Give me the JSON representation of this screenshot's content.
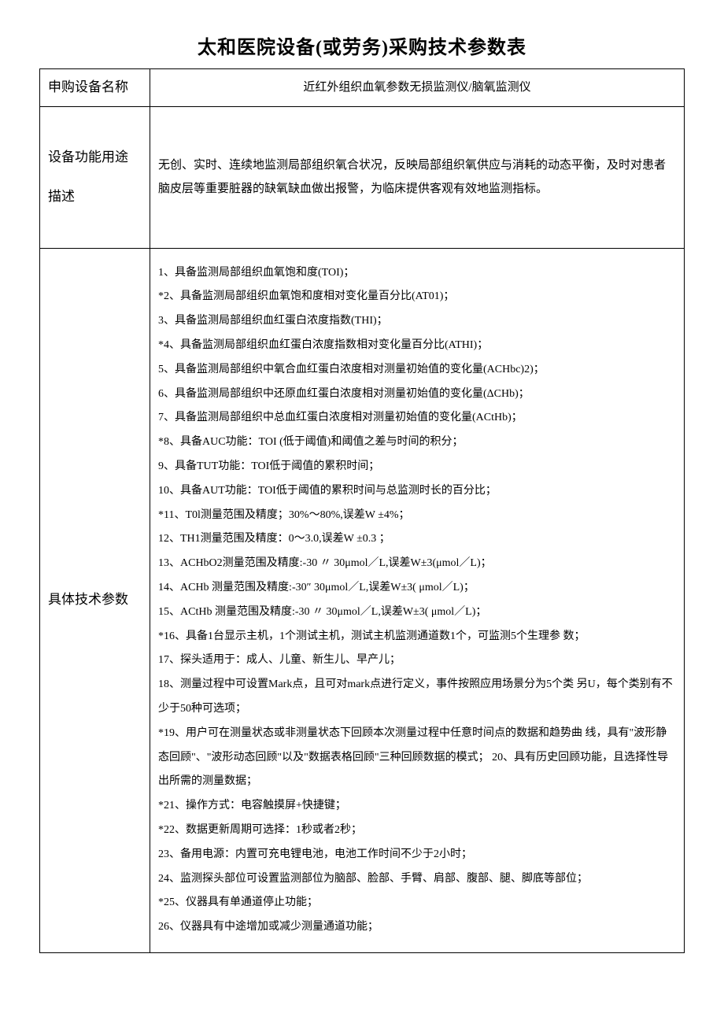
{
  "title": "太和医院设备(或劳务)采购技术参数表",
  "rows": {
    "equipment_name": {
      "label": "申购设备名称",
      "value": "近红外组织血氧参数无损监测仪/脑氧监测仪"
    },
    "function_desc": {
      "label": "设备功能用途描述",
      "value": "无创、实时、连续地监测局部组织氧合状况，反映局部组织氧供应与消耗的动态平衡，及时对患者脑皮层等重要脏器的缺氧缺血做出报警，为临床提供客观有效地监测指标。"
    },
    "tech_params": {
      "label": "具体技术参数",
      "items": [
        "1、具备监测局部组织血氧饱和度(TOI)；",
        "*2、具备监测局部组织血氧饱和度相对变化量百分比(AT01)；",
        "3、具备监测局部组织血红蛋白浓度指数(THI)；",
        "*4、具备监测局部组织血红蛋白浓度指数相对变化量百分比(ATHI)；",
        "5、具备监测局部组织中氧合血红蛋白浓度相对测量初始值的变化量(ACHbc)2)；",
        "6、具备监测局部组织中还原血红蛋白浓度相对测量初始值的变化量(ΔCHb)；",
        "7、具备监测局部组织中总血红蛋白浓度相对测量初始值的变化量(ACtHb)；",
        "*8、具备AUC功能：TOI (低于阈值)和阈值之差与时间的积分；",
        "9、具备TUT功能：TOI低于阈值的累积时间；",
        "10、具备AUT功能：TOI低于阈值的累积时间与总监测时长的百分比；",
        "*11、T0l测量范围及精度；30%～80%,误差W ±4%；",
        "12、TH1测量范围及精度：0～3.0,误差W ±0.3 ；",
        "13、ACHbO2测量范围及精度:-30 〃 30μmol／L,误差W±3(μmol／L)；",
        "14、ACHb 测量范围及精度:-30″ 30μmol／L,误差W±3( μmol／L)；",
        "15、ACtHb 测量范围及精度:-30 〃 30μmol／L,误差W±3( μmol／L)；",
        "*16、具备1台显示主机，1个测试主机，测试主机监测通道数1个，可监测5个生理参 数；",
        "17、探头适用于：成人、儿童、新生儿、早产儿；",
        "18、测量过程中可设置Mark点，且可对mark点进行定义，事件按照应用场景分为5个类 另U，每个类别有不少于50种可选项；",
        "*19、用户可在测量状态或非测量状态下回顾本次测量过程中任意时间点的数据和趋势曲 线，具有\"波形静态回顾\"、\"波形动态回顾\"以及\"数据表格回顾\"三种回顾数据的模式；  20、具有历史回顾功能，且选择性导出所需的测量数据；",
        "*21、操作方式：电容触摸屏+快捷键；",
        "*22、数据更新周期可选择：1秒或者2秒；",
        "23、备用电源：内置可充电锂电池，电池工作时间不少于2小时；",
        "24、监测探头部位可设置监测部位为脑部、脸部、手臂、肩部、腹部、腿、脚底等部位；",
        "*25、仪器具有单通道停止功能；",
        "26、仪器具有中途增加或减少测量通道功能；"
      ]
    }
  }
}
